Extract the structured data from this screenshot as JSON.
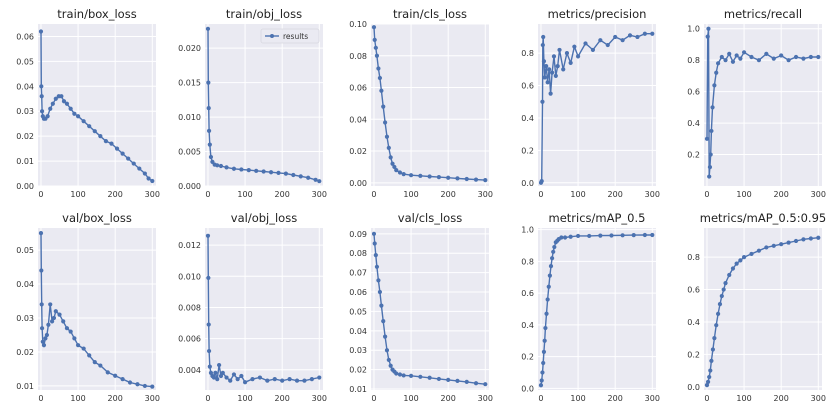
{
  "chart_data": [
    {
      "type": "line",
      "title": "train/box_loss",
      "xlim": [
        -8,
        310
      ],
      "ylim": [
        0.0,
        0.065
      ],
      "xticks": [
        0,
        100,
        200,
        300
      ],
      "yticks": [
        "0.00",
        "0.01",
        "0.02",
        "0.03",
        "0.04",
        "0.05",
        "0.06"
      ],
      "yticks_num": [
        0,
        0.01,
        0.02,
        0.03,
        0.04,
        0.05,
        0.06
      ],
      "series": [
        {
          "x": [
            0,
            1,
            2,
            3,
            5,
            8,
            12,
            18,
            25,
            32,
            40,
            48,
            55,
            62,
            70,
            80,
            90,
            100,
            115,
            130,
            145,
            160,
            175,
            190,
            205,
            220,
            235,
            250,
            265,
            280,
            290,
            300
          ],
          "y": [
            0.062,
            0.04,
            0.036,
            0.03,
            0.028,
            0.027,
            0.027,
            0.028,
            0.031,
            0.033,
            0.035,
            0.036,
            0.036,
            0.034,
            0.033,
            0.031,
            0.029,
            0.028,
            0.026,
            0.024,
            0.022,
            0.02,
            0.018,
            0.017,
            0.015,
            0.013,
            0.011,
            0.009,
            0.007,
            0.005,
            0.003,
            0.002
          ]
        }
      ]
    },
    {
      "type": "line",
      "title": "train/obj_loss",
      "xlim": [
        -8,
        310
      ],
      "ylim": [
        0.0,
        0.0235
      ],
      "xticks": [
        0,
        100,
        200,
        300
      ],
      "yticks": [
        "0.000",
        "0.005",
        "0.010",
        "0.015",
        "0.020"
      ],
      "yticks_num": [
        0,
        0.005,
        0.01,
        0.015,
        0.02
      ],
      "legend": "results",
      "series": [
        {
          "name": "results",
          "x": [
            0,
            1,
            2,
            3,
            5,
            8,
            12,
            18,
            25,
            35,
            50,
            70,
            90,
            110,
            130,
            150,
            170,
            190,
            210,
            230,
            250,
            270,
            290,
            300
          ],
          "y": [
            0.0228,
            0.015,
            0.0113,
            0.008,
            0.006,
            0.0042,
            0.0035,
            0.0031,
            0.003,
            0.0029,
            0.0027,
            0.0025,
            0.0024,
            0.0023,
            0.0022,
            0.0021,
            0.002,
            0.0019,
            0.0018,
            0.0016,
            0.0014,
            0.0012,
            0.0009,
            0.0007
          ]
        }
      ]
    },
    {
      "type": "line",
      "title": "train/cls_loss",
      "xlim": [
        -8,
        310
      ],
      "ylim": [
        -0.002,
        0.1
      ],
      "xticks": [
        0,
        100,
        200,
        300
      ],
      "yticks": [
        "0.00",
        "0.02",
        "0.04",
        "0.06",
        "0.08",
        "0.10"
      ],
      "yticks_num": [
        0,
        0.02,
        0.04,
        0.06,
        0.08,
        0.1
      ],
      "series": [
        {
          "x": [
            0,
            2,
            5,
            8,
            12,
            16,
            20,
            25,
            30,
            35,
            40,
            45,
            50,
            55,
            60,
            70,
            80,
            100,
            125,
            150,
            175,
            200,
            225,
            250,
            275,
            300
          ],
          "y": [
            0.098,
            0.09,
            0.085,
            0.08,
            0.072,
            0.066,
            0.058,
            0.048,
            0.038,
            0.029,
            0.022,
            0.016,
            0.012,
            0.01,
            0.008,
            0.0065,
            0.0055,
            0.0048,
            0.0044,
            0.004,
            0.0036,
            0.0032,
            0.0028,
            0.0024,
            0.002,
            0.0017
          ]
        }
      ]
    },
    {
      "type": "line",
      "title": "metrics/precision",
      "xlim": [
        -8,
        310
      ],
      "ylim": [
        -0.02,
        0.98
      ],
      "xticks": [
        0,
        100,
        200,
        300
      ],
      "yticks": [
        "0.0",
        "0.2",
        "0.4",
        "0.6",
        "0.8"
      ],
      "yticks_num": [
        0,
        0.2,
        0.4,
        0.6,
        0.8
      ],
      "series": [
        {
          "x": [
            0,
            2,
            4,
            5,
            6,
            8,
            10,
            14,
            18,
            22,
            26,
            30,
            35,
            40,
            45,
            50,
            60,
            70,
            80,
            90,
            100,
            120,
            140,
            160,
            180,
            200,
            220,
            240,
            260,
            280,
            300
          ],
          "y": [
            0.0,
            0.01,
            0.5,
            0.85,
            0.9,
            0.75,
            0.65,
            0.72,
            0.62,
            0.7,
            0.55,
            0.68,
            0.78,
            0.66,
            0.72,
            0.82,
            0.7,
            0.8,
            0.74,
            0.84,
            0.78,
            0.86,
            0.82,
            0.88,
            0.85,
            0.9,
            0.88,
            0.91,
            0.9,
            0.92,
            0.92
          ]
        }
      ]
    },
    {
      "type": "line",
      "title": "metrics/recall",
      "xlim": [
        -8,
        310
      ],
      "ylim": [
        0.0,
        1.03
      ],
      "xticks": [
        0,
        100,
        200,
        300
      ],
      "yticks": [
        "0.2",
        "0.4",
        "0.6",
        "0.8",
        "1.0"
      ],
      "yticks_num": [
        0.2,
        0.4,
        0.6,
        0.8,
        1.0
      ],
      "series": [
        {
          "x": [
            0,
            2,
            4,
            6,
            8,
            10,
            12,
            15,
            20,
            25,
            30,
            40,
            50,
            60,
            70,
            80,
            90,
            100,
            120,
            140,
            160,
            180,
            200,
            220,
            240,
            260,
            280,
            300
          ],
          "y": [
            0.3,
            0.95,
            1.0,
            0.06,
            0.12,
            0.2,
            0.35,
            0.5,
            0.64,
            0.72,
            0.78,
            0.82,
            0.8,
            0.84,
            0.79,
            0.83,
            0.81,
            0.85,
            0.82,
            0.8,
            0.84,
            0.81,
            0.83,
            0.8,
            0.82,
            0.81,
            0.82,
            0.82
          ]
        }
      ]
    },
    {
      "type": "line",
      "title": "val/box_loss",
      "xlim": [
        -8,
        310
      ],
      "ylim": [
        0.0088,
        0.0565
      ],
      "xticks": [
        0,
        100,
        200,
        300
      ],
      "yticks": [
        "0.01",
        "0.02",
        "0.03",
        "0.04",
        "0.05"
      ],
      "yticks_num": [
        0.01,
        0.02,
        0.03,
        0.04,
        0.05
      ],
      "series": [
        {
          "x": [
            0,
            1,
            2,
            3,
            5,
            8,
            12,
            16,
            20,
            25,
            30,
            35,
            40,
            50,
            60,
            70,
            80,
            90,
            100,
            115,
            130,
            145,
            160,
            180,
            200,
            220,
            240,
            260,
            280,
            300
          ],
          "y": [
            0.055,
            0.044,
            0.034,
            0.027,
            0.023,
            0.022,
            0.024,
            0.025,
            0.028,
            0.034,
            0.029,
            0.03,
            0.032,
            0.031,
            0.029,
            0.027,
            0.026,
            0.024,
            0.022,
            0.021,
            0.019,
            0.017,
            0.016,
            0.014,
            0.013,
            0.012,
            0.011,
            0.0105,
            0.01,
            0.0098
          ]
        }
      ]
    },
    {
      "type": "line",
      "title": "val/obj_loss",
      "xlim": [
        -8,
        310
      ],
      "ylim": [
        0.0027,
        0.0131
      ],
      "xticks": [
        0,
        100,
        200,
        300
      ],
      "yticks": [
        "0.004",
        "0.006",
        "0.008",
        "0.010",
        "0.012"
      ],
      "yticks_num": [
        0.004,
        0.006,
        0.008,
        0.01,
        0.012
      ],
      "series": [
        {
          "x": [
            0,
            1,
            2,
            3,
            5,
            8,
            12,
            16,
            20,
            25,
            30,
            35,
            40,
            50,
            60,
            70,
            80,
            90,
            100,
            120,
            140,
            160,
            180,
            200,
            220,
            240,
            260,
            280,
            300
          ],
          "y": [
            0.0126,
            0.0099,
            0.0069,
            0.0052,
            0.0042,
            0.0038,
            0.0036,
            0.0035,
            0.0038,
            0.0034,
            0.0043,
            0.0036,
            0.0038,
            0.0035,
            0.0033,
            0.0037,
            0.0034,
            0.0036,
            0.0032,
            0.0034,
            0.0035,
            0.0033,
            0.0034,
            0.0033,
            0.0034,
            0.0033,
            0.0033,
            0.0034,
            0.0035
          ]
        }
      ]
    },
    {
      "type": "line",
      "title": "val/cls_loss",
      "xlim": [
        -8,
        310
      ],
      "ylim": [
        0.0095,
        0.093
      ],
      "xticks": [
        0,
        100,
        200,
        300
      ],
      "yticks": [
        "0.01",
        "0.02",
        "0.03",
        "0.04",
        "0.05",
        "0.06",
        "0.07",
        "0.08",
        "0.09"
      ],
      "yticks_num": [
        0.01,
        0.02,
        0.03,
        0.04,
        0.05,
        0.06,
        0.07,
        0.08,
        0.09
      ],
      "series": [
        {
          "x": [
            0,
            2,
            5,
            8,
            12,
            16,
            20,
            25,
            30,
            35,
            40,
            45,
            50,
            55,
            60,
            70,
            80,
            100,
            125,
            150,
            175,
            200,
            225,
            250,
            275,
            300
          ],
          "y": [
            0.09,
            0.085,
            0.079,
            0.073,
            0.066,
            0.06,
            0.053,
            0.045,
            0.037,
            0.03,
            0.025,
            0.022,
            0.02,
            0.019,
            0.018,
            0.0175,
            0.017,
            0.0168,
            0.0163,
            0.0158,
            0.0152,
            0.0147,
            0.0142,
            0.0137,
            0.013,
            0.0125
          ]
        }
      ]
    },
    {
      "type": "line",
      "title": "metrics/mAP_0.5",
      "xlim": [
        -8,
        310
      ],
      "ylim": [
        -0.01,
        1.01
      ],
      "xticks": [
        0,
        100,
        200,
        300
      ],
      "yticks": [
        "0.0",
        "0.2",
        "0.4",
        "0.6",
        "0.8",
        "1.0"
      ],
      "yticks_num": [
        0,
        0.2,
        0.4,
        0.6,
        0.8,
        1.0
      ],
      "series": [
        {
          "x": [
            0,
            2,
            4,
            6,
            8,
            10,
            12,
            15,
            18,
            21,
            24,
            27,
            30,
            33,
            36,
            40,
            44,
            48,
            55,
            65,
            80,
            100,
            130,
            160,
            190,
            220,
            250,
            280,
            300
          ],
          "y": [
            0.02,
            0.05,
            0.1,
            0.16,
            0.23,
            0.3,
            0.38,
            0.47,
            0.56,
            0.64,
            0.71,
            0.77,
            0.82,
            0.86,
            0.89,
            0.92,
            0.93,
            0.94,
            0.95,
            0.95,
            0.955,
            0.96,
            0.96,
            0.962,
            0.963,
            0.964,
            0.965,
            0.966,
            0.966
          ]
        }
      ]
    },
    {
      "type": "line",
      "title": "metrics/mAP_0.5:0.95",
      "xlim": [
        -8,
        310
      ],
      "ylim": [
        -0.02,
        0.98
      ],
      "xticks": [
        0,
        100,
        200,
        300
      ],
      "yticks": [
        "0.0",
        "0.2",
        "0.4",
        "0.6",
        "0.8"
      ],
      "yticks_num": [
        0,
        0.2,
        0.4,
        0.6,
        0.8
      ],
      "series": [
        {
          "x": [
            0,
            3,
            6,
            9,
            12,
            16,
            20,
            25,
            30,
            35,
            40,
            45,
            50,
            60,
            70,
            80,
            90,
            100,
            120,
            140,
            160,
            180,
            200,
            220,
            240,
            260,
            280,
            300
          ],
          "y": [
            0.01,
            0.03,
            0.06,
            0.1,
            0.16,
            0.23,
            0.3,
            0.38,
            0.45,
            0.51,
            0.56,
            0.6,
            0.64,
            0.69,
            0.73,
            0.76,
            0.78,
            0.8,
            0.82,
            0.84,
            0.86,
            0.87,
            0.88,
            0.89,
            0.9,
            0.91,
            0.915,
            0.92
          ]
        }
      ]
    }
  ]
}
